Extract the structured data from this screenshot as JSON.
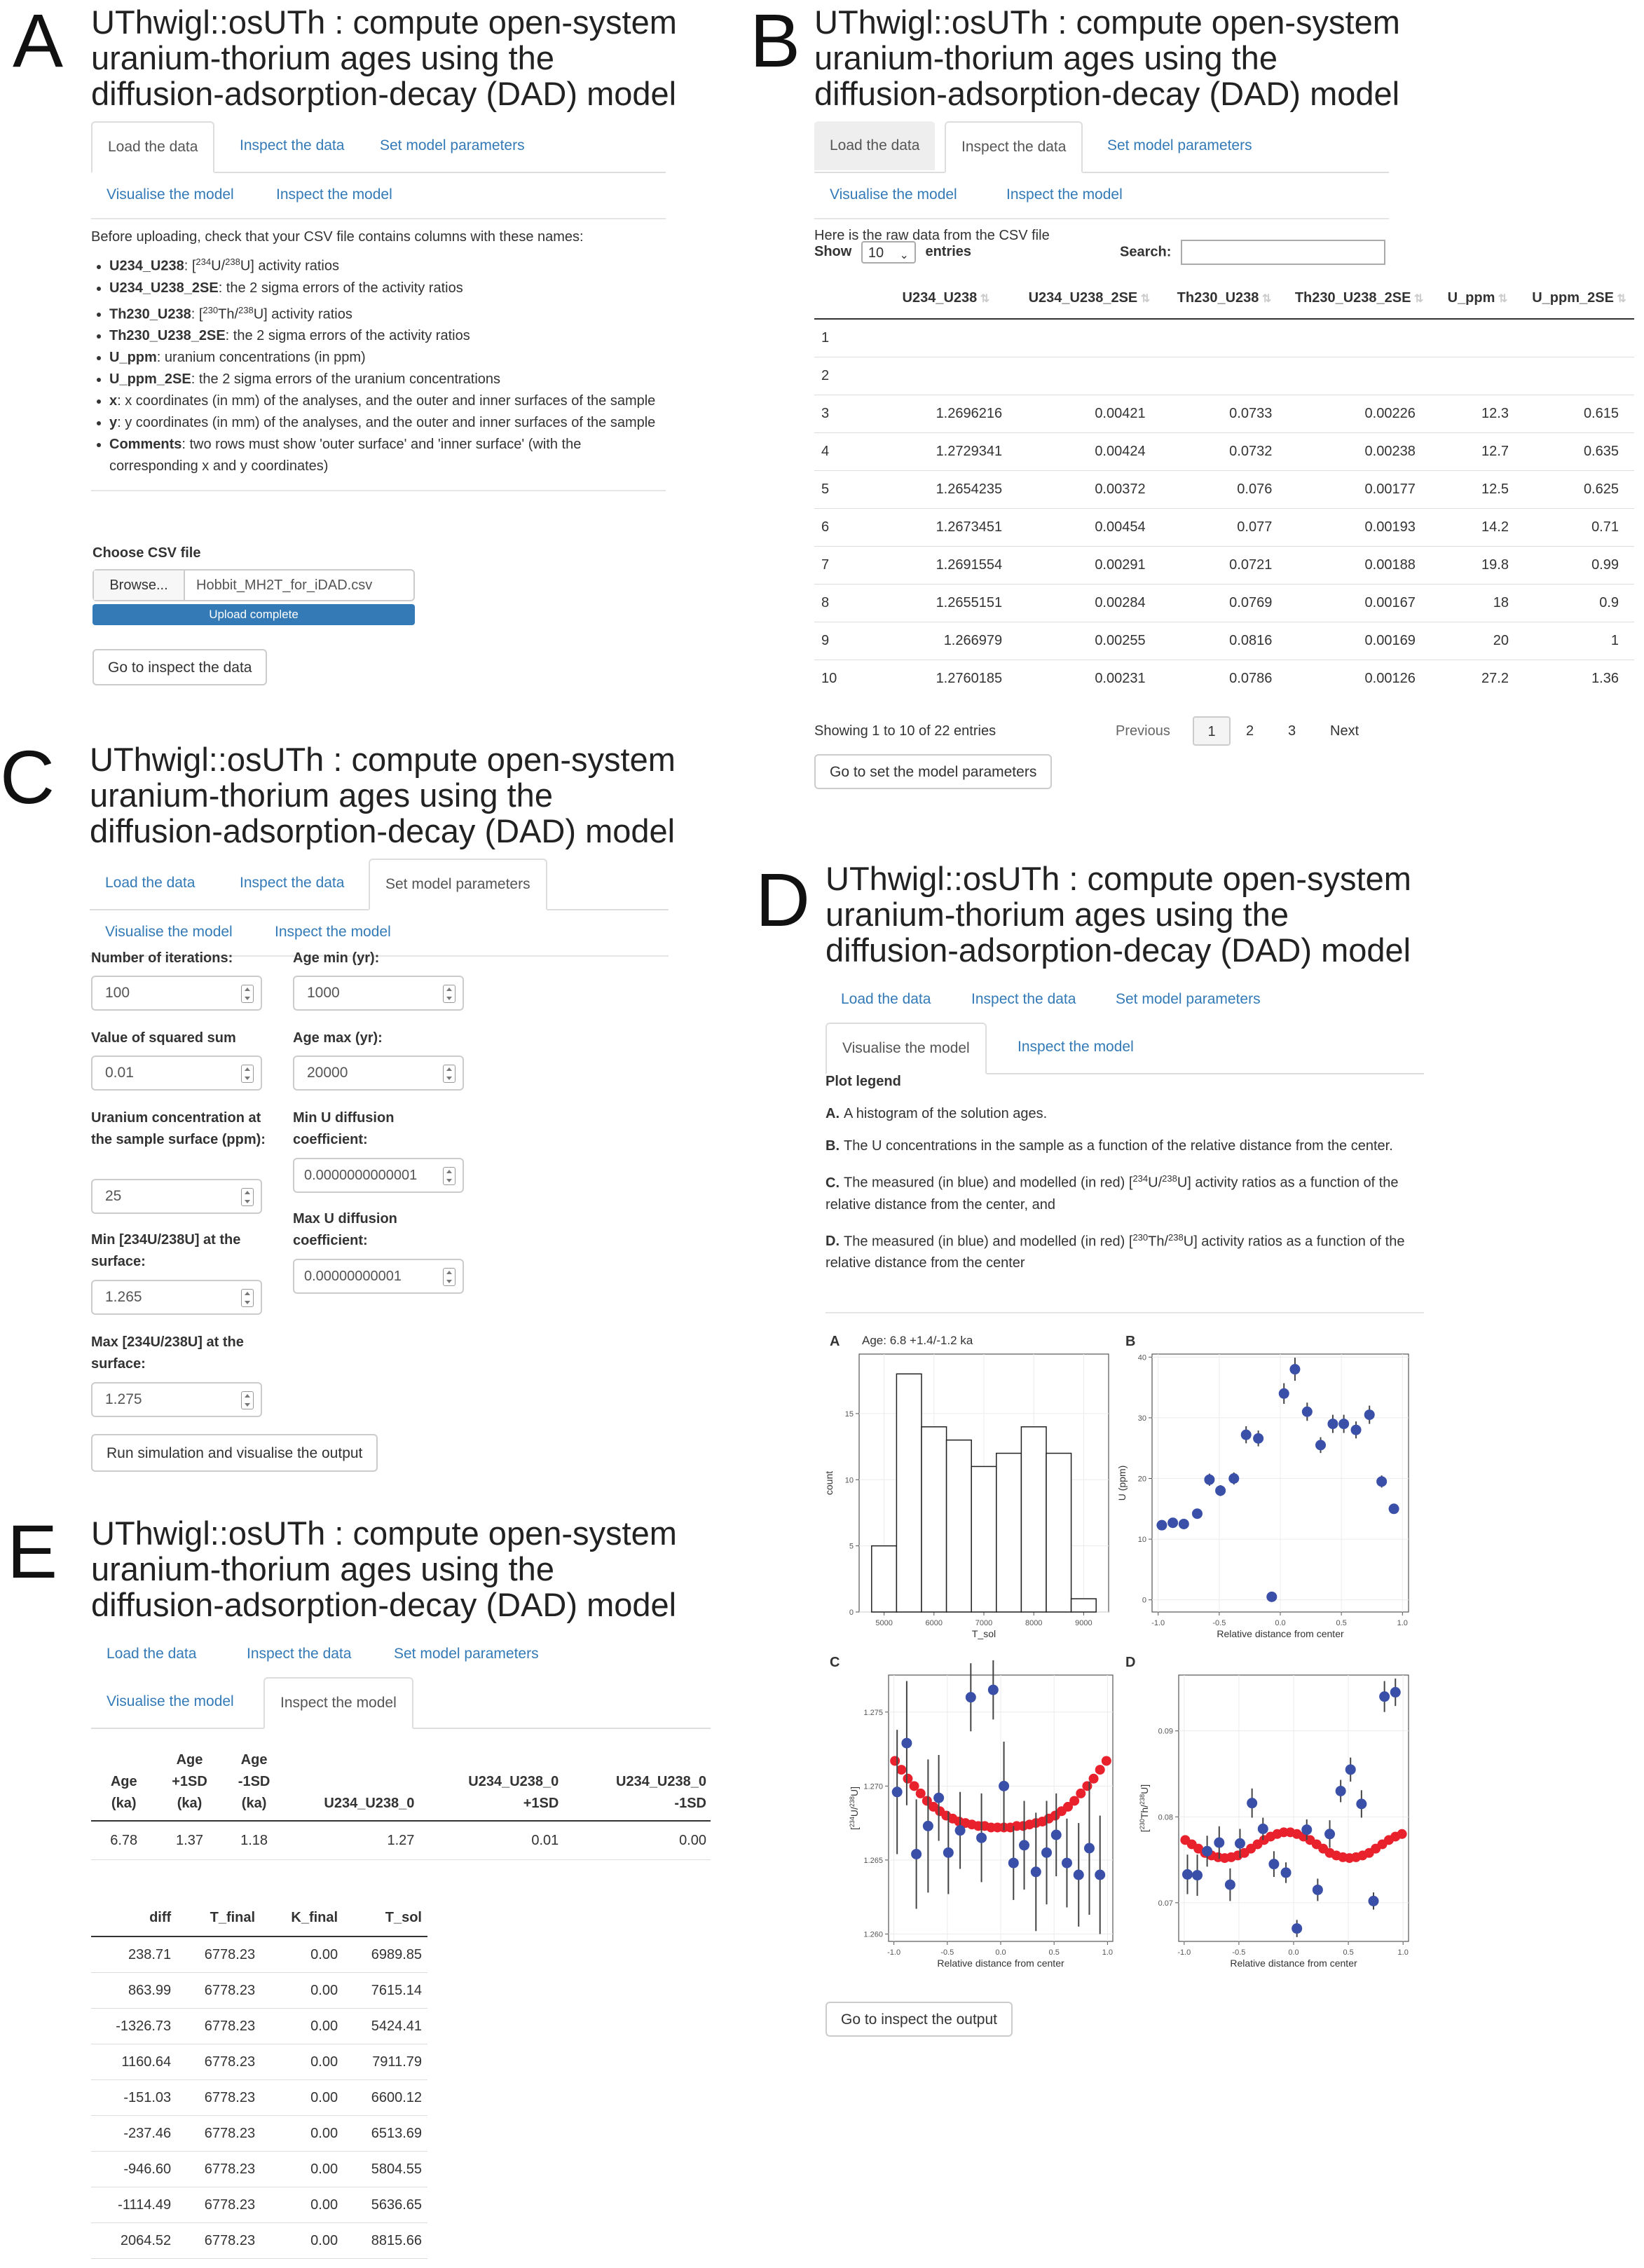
{
  "app_title_lines": [
    "UThwigl::osUTh : compute open-system",
    "uranium-thorium ages using the",
    "diffusion-adsorption-decay (DAD) model"
  ],
  "panel_labels": [
    "A",
    "B",
    "C",
    "D",
    "E"
  ],
  "tabs": {
    "load": "Load the data",
    "inspect_data": "Inspect the data",
    "set_params": "Set model parameters",
    "visualise": "Visualise the model",
    "inspect_model": "Inspect the model"
  },
  "panel_a": {
    "intro": "Before uploading, check that your CSV file contains columns with these names:",
    "columns": [
      {
        "name": "U234_U238",
        "pre": ": [",
        "iso1": "234",
        "mid1": "U/",
        "iso2": "238",
        "post": "U] activity ratios"
      },
      {
        "name": "U234_U238_2SE",
        "desc": ": the 2 sigma errors of the activity ratios"
      },
      {
        "name": "Th230_U238",
        "pre": ": [",
        "iso1": "230",
        "mid1": "Th/",
        "iso2": "238",
        "post": "U] activity ratios"
      },
      {
        "name": "Th230_U238_2SE",
        "desc": ": the 2 sigma errors of the activity ratios"
      },
      {
        "name": "U_ppm",
        "desc": ": uranium concentrations (in ppm)"
      },
      {
        "name": "U_ppm_2SE",
        "desc": ": the 2 sigma errors of the uranium concentrations"
      },
      {
        "name": "x",
        "desc": ": x coordinates (in mm) of the analyses, and the outer and inner surfaces of the sample"
      },
      {
        "name": "y",
        "desc": ": y coordinates (in mm) of the analyses, and the outer and inner surfaces of the sample"
      },
      {
        "name": "Comments",
        "desc": ": two rows must show 'outer surface' and 'inner surface' (with the corresponding x and y coordinates)"
      }
    ],
    "choose_label": "Choose CSV file",
    "browse": "Browse...",
    "filename": "Hobbit_MH2T_for_iDAD.csv",
    "upload_status": "Upload complete",
    "progress": 1.0,
    "goto_button": "Go to inspect the data"
  },
  "panel_b": {
    "raw_data_caption": "Here is the raw data from the CSV file",
    "show_label": "Show",
    "show_value": "10",
    "entries_label": "entries",
    "search_label": "Search:",
    "search_value": "",
    "headers": [
      "",
      "U234_U238",
      "U234_U238_2SE",
      "Th230_U238",
      "Th230_U238_2SE",
      "U_ppm",
      "U_ppm_2SE"
    ],
    "rows": [
      [
        "1",
        "",
        "",
        "",
        "",
        "",
        ""
      ],
      [
        "2",
        "",
        "",
        "",
        "",
        "",
        ""
      ],
      [
        "3",
        "1.2696216",
        "0.00421",
        "0.0733",
        "0.00226",
        "12.3",
        "0.615"
      ],
      [
        "4",
        "1.2729341",
        "0.00424",
        "0.0732",
        "0.00238",
        "12.7",
        "0.635"
      ],
      [
        "5",
        "1.2654235",
        "0.00372",
        "0.076",
        "0.00177",
        "12.5",
        "0.625"
      ],
      [
        "6",
        "1.2673451",
        "0.00454",
        "0.077",
        "0.00193",
        "14.2",
        "0.71"
      ],
      [
        "7",
        "1.2691554",
        "0.00291",
        "0.0721",
        "0.00188",
        "19.8",
        "0.99"
      ],
      [
        "8",
        "1.2655151",
        "0.00284",
        "0.0769",
        "0.00167",
        "18",
        "0.9"
      ],
      [
        "9",
        "1.266979",
        "0.00255",
        "0.0816",
        "0.00169",
        "20",
        "1"
      ],
      [
        "10",
        "1.2760185",
        "0.00231",
        "0.0786",
        "0.00126",
        "27.2",
        "1.36"
      ]
    ],
    "info": "Showing 1 to 10 of 22 entries",
    "pager": [
      "Previous",
      "1",
      "2",
      "3",
      "Next"
    ],
    "goto_button": "Go to set the model parameters"
  },
  "panel_c": {
    "fields": [
      {
        "label": "Number of iterations:",
        "value": "100"
      },
      {
        "label": "Age min (yr):",
        "value": "1000"
      },
      {
        "label": "Value of squared sum",
        "value": "0.01"
      },
      {
        "label": "Age max (yr):",
        "value": "20000"
      },
      {
        "label": "Uranium concentration at the sample surface (ppm):",
        "value": "25"
      },
      {
        "label": "Min U diffusion coefficient:",
        "value": "0.0000000000001"
      },
      {
        "label": "Min [234U/238U] at the surface:",
        "value": "1.265"
      },
      {
        "label": "Max U diffusion coefficient:",
        "value": "0.00000000001"
      },
      {
        "label": "Max [234U/238U] at the surface:",
        "value": "1.275"
      }
    ],
    "run_button": "Run simulation and visualise the output"
  },
  "panel_d": {
    "legend_title": "Plot legend",
    "legend_items": [
      {
        "key": "A.",
        "text": "A histogram of the solution ages."
      },
      {
        "key": "B.",
        "text": "The U concentrations in the sample as a function of the relative distance from the center."
      },
      {
        "key": "C.",
        "pre": "The measured (in blue) and modelled (in red) [",
        "iso1": "234",
        "mid": "U/",
        "iso2": "238",
        "post": "U] activity ratios as a function of the relative distance from the center, and"
      },
      {
        "key": "D.",
        "pre": "The measured (in blue) and modelled (in red) [",
        "iso1": "230",
        "mid": "Th/",
        "iso2": "238",
        "post": "U] activity ratios as a function of the relative distance from the center"
      }
    ],
    "goto_button": "Go to inspect the output",
    "colors": {
      "measured": "#3a4fa8",
      "modelled": "#e8212d"
    }
  },
  "chart_data": [
    {
      "type": "bar",
      "panel": "A",
      "title": "Age: 6.8 +1.4/-1.2 ka",
      "xlabel": "T_sol",
      "ylabel": "count",
      "bin_edges": [
        4750,
        5250,
        5750,
        6250,
        6750,
        7250,
        7750,
        8250,
        8750,
        9250
      ],
      "values": [
        5,
        18,
        14,
        13,
        11,
        12,
        14,
        12,
        1
      ],
      "xticks": [
        "5000",
        "6000",
        "7000",
        "8000",
        "9000"
      ],
      "yticks": [
        "0",
        "5",
        "10",
        "15"
      ],
      "ylim": [
        0,
        19.5
      ],
      "grid": true
    },
    {
      "type": "scatter",
      "panel": "B",
      "xlabel": "Relative distance from center",
      "ylabel": "U (ppm)",
      "xlim": [
        -1,
        1
      ],
      "ylim": [
        0,
        40
      ],
      "xticks": [
        "-1.0",
        "-0.5",
        "0.0",
        "0.5",
        "1.0"
      ],
      "yticks": [
        "0",
        "10",
        "20",
        "30",
        "40"
      ],
      "points": [
        [
          -0.97,
          12.3,
          0.6
        ],
        [
          -0.88,
          12.7,
          0.6
        ],
        [
          -0.79,
          12.5,
          0.6
        ],
        [
          -0.68,
          14.2,
          0.7
        ],
        [
          -0.58,
          19.8,
          1.0
        ],
        [
          -0.49,
          18.0,
          0.9
        ],
        [
          -0.38,
          20.0,
          1.0
        ],
        [
          -0.28,
          27.2,
          1.4
        ],
        [
          -0.18,
          26.6,
          1.3
        ],
        [
          -0.07,
          0.5,
          0.1
        ],
        [
          0.03,
          34.0,
          1.7
        ],
        [
          0.12,
          38.0,
          1.9
        ],
        [
          0.22,
          31.0,
          1.5
        ],
        [
          0.33,
          25.5,
          1.3
        ],
        [
          0.43,
          29.0,
          1.5
        ],
        [
          0.52,
          29.0,
          1.5
        ],
        [
          0.62,
          28.0,
          1.4
        ],
        [
          0.73,
          30.5,
          1.5
        ],
        [
          0.83,
          19.5,
          1.0
        ],
        [
          0.93,
          15.0,
          0.8
        ]
      ]
    },
    {
      "type": "scatter",
      "panel": "C",
      "xlabel": "Relative distance from center",
      "ylabel_pre": "[",
      "ylabel_iso1": "234",
      "ylabel_mid": "U/",
      "ylabel_iso2": "238",
      "ylabel_post": "U]",
      "xlim": [
        -1.05,
        1.05
      ],
      "ylim": [
        1.2595,
        1.2775
      ],
      "xticks": [
        "-1.0",
        "-0.5",
        "0.0",
        "0.5",
        "1.0"
      ],
      "yticks": [
        "1.260",
        "1.265",
        "1.270",
        "1.275"
      ],
      "measured": [
        [
          -0.97,
          1.2696,
          0.0042
        ],
        [
          -0.88,
          1.2729,
          0.0042
        ],
        [
          -0.79,
          1.2654,
          0.0037
        ],
        [
          -0.68,
          1.2673,
          0.0045
        ],
        [
          -0.58,
          1.2692,
          0.0029
        ],
        [
          -0.49,
          1.2655,
          0.0028
        ],
        [
          -0.38,
          1.267,
          0.0026
        ],
        [
          -0.28,
          1.276,
          0.0023
        ],
        [
          -0.18,
          1.2665,
          0.003
        ],
        [
          -0.07,
          1.2765,
          0.002
        ],
        [
          0.03,
          1.27,
          0.003
        ],
        [
          0.12,
          1.2648,
          0.0025
        ],
        [
          0.22,
          1.266,
          0.003
        ],
        [
          0.33,
          1.2642,
          0.004
        ],
        [
          0.43,
          1.2655,
          0.0035
        ],
        [
          0.52,
          1.2667,
          0.0028
        ],
        [
          0.62,
          1.2648,
          0.003
        ],
        [
          0.73,
          1.264,
          0.0035
        ],
        [
          0.83,
          1.2658,
          0.0045
        ],
        [
          0.93,
          1.264,
          0.004
        ]
      ],
      "modelled_x": [
        -0.99,
        -0.93,
        -0.87,
        -0.81,
        -0.75,
        -0.69,
        -0.63,
        -0.57,
        -0.51,
        -0.45,
        -0.39,
        -0.33,
        -0.27,
        -0.21,
        -0.15,
        -0.09,
        -0.03,
        0.03,
        0.09,
        0.15,
        0.21,
        0.27,
        0.33,
        0.39,
        0.45,
        0.51,
        0.57,
        0.63,
        0.69,
        0.75,
        0.81,
        0.87,
        0.93,
        0.99
      ],
      "modelled_y": [
        1.2717,
        1.2711,
        1.2705,
        1.27,
        1.2695,
        1.269,
        1.2686,
        1.2683,
        1.268,
        1.2678,
        1.2676,
        1.2675,
        1.2674,
        1.2673,
        1.2673,
        1.2672,
        1.2672,
        1.2672,
        1.2672,
        1.2673,
        1.2673,
        1.2674,
        1.2675,
        1.2676,
        1.2678,
        1.268,
        1.2683,
        1.2686,
        1.269,
        1.2695,
        1.27,
        1.2705,
        1.2711,
        1.2717
      ]
    },
    {
      "type": "scatter",
      "panel": "D",
      "xlabel": "Relative distance from center",
      "ylabel_pre": "[",
      "ylabel_iso1": "230",
      "ylabel_mid": "Th/",
      "ylabel_iso2": "238",
      "ylabel_post": "U]",
      "xlim": [
        -1.05,
        1.05
      ],
      "ylim": [
        0.0655,
        0.0965
      ],
      "xticks": [
        "-1.0",
        "-0.5",
        "0.0",
        "0.5",
        "1.0"
      ],
      "yticks": [
        "0.07",
        "0.08",
        "0.09"
      ],
      "measured": [
        [
          -0.97,
          0.0733,
          0.0023
        ],
        [
          -0.88,
          0.0732,
          0.0024
        ],
        [
          -0.79,
          0.076,
          0.0018
        ],
        [
          -0.68,
          0.077,
          0.0019
        ],
        [
          -0.58,
          0.0721,
          0.0019
        ],
        [
          -0.49,
          0.0769,
          0.0017
        ],
        [
          -0.38,
          0.0816,
          0.0017
        ],
        [
          -0.28,
          0.0786,
          0.0013
        ],
        [
          -0.18,
          0.0745,
          0.0015
        ],
        [
          -0.07,
          0.0735,
          0.0012
        ],
        [
          0.03,
          0.067,
          0.001
        ],
        [
          0.12,
          0.0785,
          0.0012
        ],
        [
          0.22,
          0.0715,
          0.0013
        ],
        [
          0.33,
          0.078,
          0.0016
        ],
        [
          0.43,
          0.083,
          0.0013
        ],
        [
          0.52,
          0.0855,
          0.0014
        ],
        [
          0.62,
          0.0815,
          0.0016
        ],
        [
          0.73,
          0.0702,
          0.001
        ],
        [
          0.83,
          0.094,
          0.0018
        ],
        [
          0.93,
          0.0945,
          0.0016
        ]
      ],
      "modelled_x": [
        -0.99,
        -0.93,
        -0.87,
        -0.81,
        -0.75,
        -0.69,
        -0.63,
        -0.57,
        -0.51,
        -0.45,
        -0.39,
        -0.33,
        -0.27,
        -0.21,
        -0.15,
        -0.09,
        -0.03,
        0.03,
        0.09,
        0.15,
        0.21,
        0.27,
        0.33,
        0.39,
        0.45,
        0.51,
        0.57,
        0.63,
        0.69,
        0.75,
        0.81,
        0.87,
        0.93,
        0.99
      ],
      "modelled_y": [
        0.0773,
        0.0768,
        0.0763,
        0.0758,
        0.0755,
        0.0753,
        0.0752,
        0.0753,
        0.0755,
        0.0758,
        0.0763,
        0.0768,
        0.0773,
        0.0777,
        0.078,
        0.0782,
        0.0782,
        0.078,
        0.0777,
        0.0773,
        0.0768,
        0.0763,
        0.0758,
        0.0755,
        0.0753,
        0.0752,
        0.0753,
        0.0755,
        0.0758,
        0.0763,
        0.0768,
        0.0773,
        0.0777,
        0.078
      ]
    }
  ],
  "panel_e": {
    "summary_headers": [
      [
        "Age",
        "(ka)"
      ],
      [
        "Age",
        "+1SD",
        "(ka)"
      ],
      [
        "Age",
        "-1SD",
        "(ka)"
      ],
      [
        "U234_U238_0"
      ],
      [
        "U234_U238_0",
        "+1SD"
      ],
      [
        "U234_U238_0",
        "-1SD"
      ]
    ],
    "summary_row": [
      "6.78",
      "1.37",
      "1.18",
      "1.27",
      "0.01",
      "0.00"
    ],
    "detail_headers": [
      "diff",
      "T_final",
      "K_final",
      "T_sol"
    ],
    "detail_rows": [
      [
        "238.71",
        "6778.23",
        "0.00",
        "6989.85"
      ],
      [
        "863.99",
        "6778.23",
        "0.00",
        "7615.14"
      ],
      [
        "-1326.73",
        "6778.23",
        "0.00",
        "5424.41"
      ],
      [
        "1160.64",
        "6778.23",
        "0.00",
        "7911.79"
      ],
      [
        "-151.03",
        "6778.23",
        "0.00",
        "6600.12"
      ],
      [
        "-237.46",
        "6778.23",
        "0.00",
        "6513.69"
      ],
      [
        "-946.60",
        "6778.23",
        "0.00",
        "5804.55"
      ],
      [
        "-1114.49",
        "6778.23",
        "0.00",
        "5636.65"
      ],
      [
        "2064.52",
        "6778.23",
        "0.00",
        "8815.66"
      ]
    ]
  }
}
